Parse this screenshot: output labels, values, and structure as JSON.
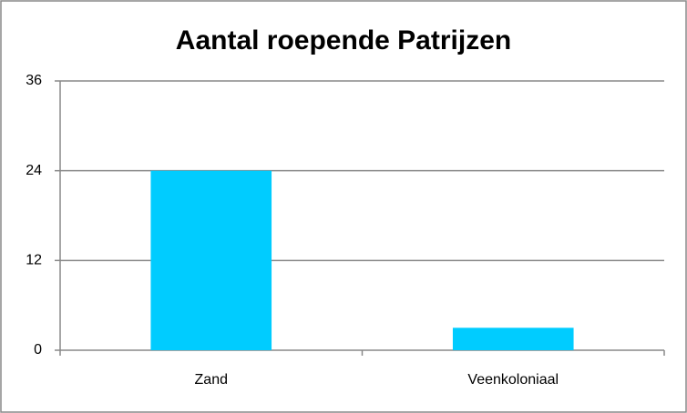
{
  "chart_data": {
    "type": "bar",
    "title": "Aantal roepende Patrijzen",
    "categories": [
      "Zand",
      "Veenkoloniaal"
    ],
    "values": [
      24,
      3
    ],
    "color": "#00ccff",
    "ylim": [
      0,
      36
    ],
    "yticks": [
      0,
      12,
      24,
      36
    ],
    "grid": true
  }
}
